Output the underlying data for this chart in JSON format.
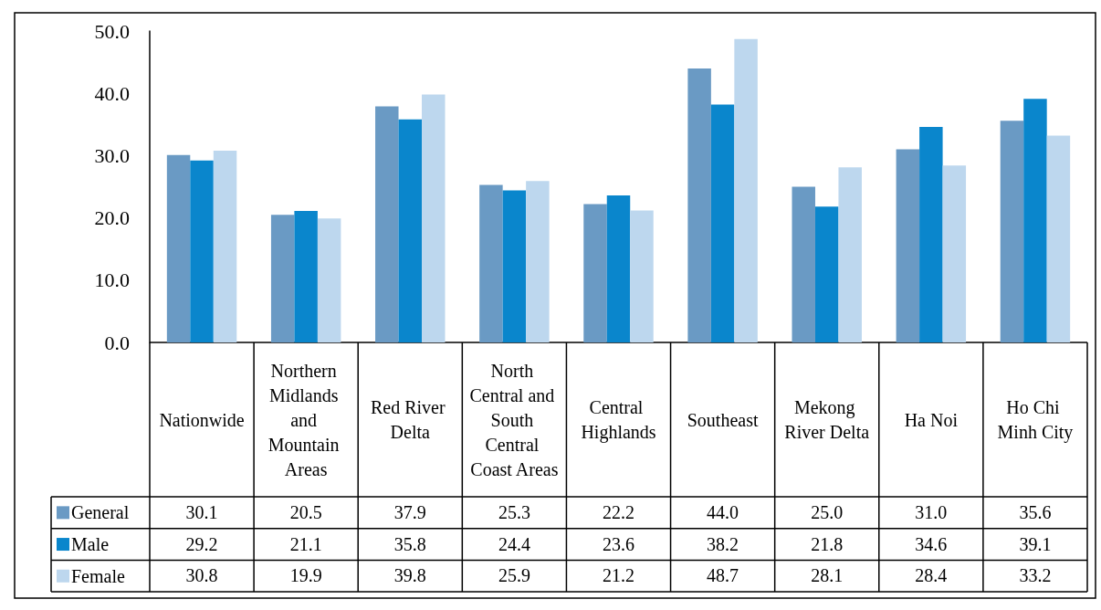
{
  "chart_data": {
    "type": "bar",
    "categories": [
      "Nationwide",
      "Northern Midlands and Mountain Areas",
      "Red River Delta",
      "North Central and South Central Coast Areas",
      "Central Highlands",
      "Southeast",
      "Mekong River Delta",
      "Ha Noi",
      "Ho Chi Minh City"
    ],
    "series": [
      {
        "name": "General",
        "color": "#6a9ac4",
        "values": [
          30.1,
          20.5,
          37.9,
          25.3,
          22.2,
          44.0,
          25.0,
          31.0,
          35.6
        ],
        "value_labels": [
          "30.1",
          "20.5",
          "37.9",
          "25.3",
          "22.2",
          "44.0",
          "25.0",
          "31.0",
          "35.6"
        ]
      },
      {
        "name": "Male",
        "color": "#0a86cc",
        "values": [
          29.2,
          21.1,
          35.8,
          24.4,
          23.6,
          38.2,
          21.8,
          34.6,
          39.1
        ],
        "value_labels": [
          "29.2",
          "21.1",
          "35.8",
          "24.4",
          "23.6",
          "38.2",
          "21.8",
          "34.6",
          "39.1"
        ]
      },
      {
        "name": "Female",
        "color": "#bdd7ee",
        "values": [
          30.8,
          19.9,
          39.8,
          25.9,
          21.2,
          48.7,
          28.1,
          28.4,
          33.2
        ],
        "value_labels": [
          "30.8",
          "19.9",
          "39.8",
          "25.9",
          "21.2",
          "48.7",
          "28.1",
          "28.4",
          "33.2"
        ]
      }
    ],
    "ylim": [
      0,
      50
    ],
    "yticks": [
      {
        "value": 0,
        "label": "0.0"
      },
      {
        "value": 10,
        "label": "10.0"
      },
      {
        "value": 20,
        "label": "20.0"
      },
      {
        "value": 30,
        "label": "30.0"
      },
      {
        "value": 40,
        "label": "40.0"
      },
      {
        "value": 50,
        "label": "50.0"
      }
    ],
    "grid": false,
    "legend": "bottom left"
  }
}
